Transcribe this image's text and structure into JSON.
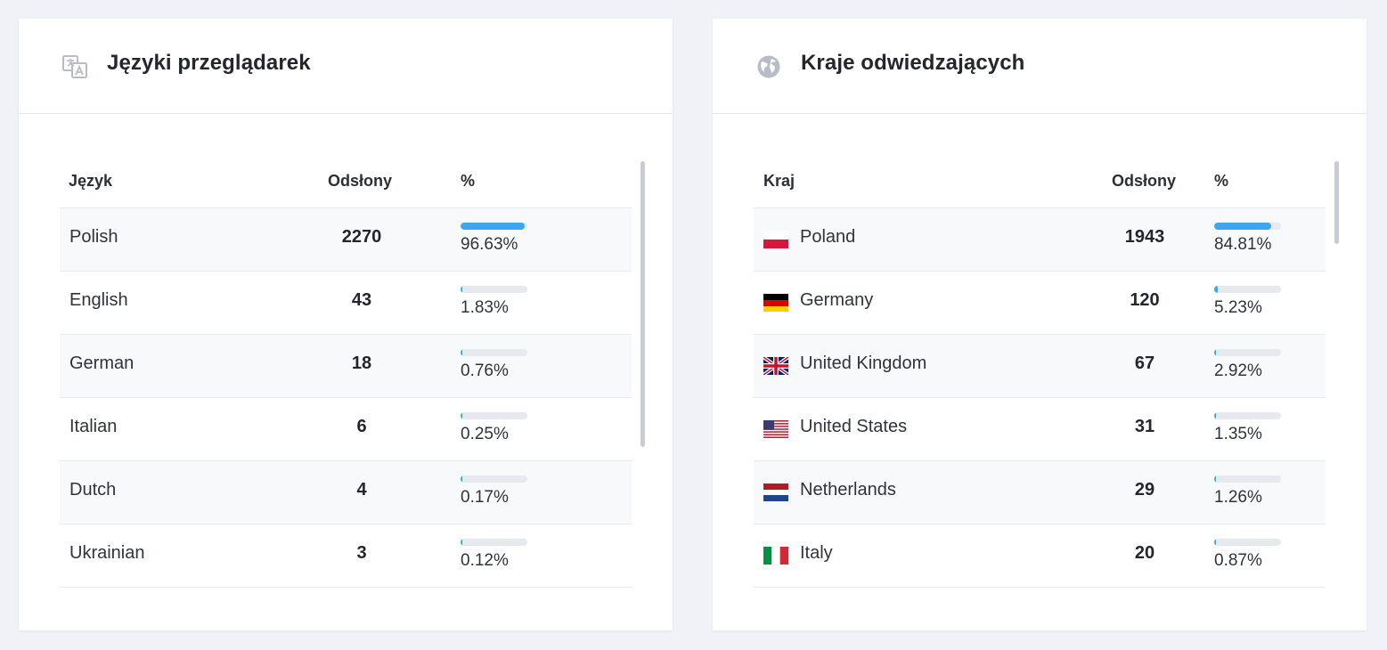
{
  "languages": {
    "title": "Języki przeglądarek",
    "icon": "translate-icon",
    "col_name": "Język",
    "col_views": "Odsłony",
    "col_pct": "%",
    "rows": [
      {
        "name": "Polish",
        "views": "2270",
        "pct": "96.63%",
        "fraction": 0.9663
      },
      {
        "name": "English",
        "views": "43",
        "pct": "1.83%",
        "fraction": 0.0183
      },
      {
        "name": "German",
        "views": "18",
        "pct": "0.76%",
        "fraction": 0.0076
      },
      {
        "name": "Italian",
        "views": "6",
        "pct": "0.25%",
        "fraction": 0.0025
      },
      {
        "name": "Dutch",
        "views": "4",
        "pct": "0.17%",
        "fraction": 0.0017
      },
      {
        "name": "Ukrainian",
        "views": "3",
        "pct": "0.12%",
        "fraction": 0.0012
      }
    ]
  },
  "countries": {
    "title": "Kraje odwiedzających",
    "icon": "globe-icon",
    "col_name": "Kraj",
    "col_views": "Odsłony",
    "col_pct": "%",
    "rows": [
      {
        "name": "Poland",
        "flag": "pl",
        "views": "1943",
        "pct": "84.81%",
        "fraction": 0.8481
      },
      {
        "name": "Germany",
        "flag": "de",
        "views": "120",
        "pct": "5.23%",
        "fraction": 0.0523
      },
      {
        "name": "United Kingdom",
        "flag": "gb",
        "views": "67",
        "pct": "2.92%",
        "fraction": 0.0292
      },
      {
        "name": "United States",
        "flag": "us",
        "views": "31",
        "pct": "1.35%",
        "fraction": 0.0135
      },
      {
        "name": "Netherlands",
        "flag": "nl",
        "views": "29",
        "pct": "1.26%",
        "fraction": 0.0126
      },
      {
        "name": "Italy",
        "flag": "it",
        "views": "20",
        "pct": "0.87%",
        "fraction": 0.0087
      }
    ]
  },
  "colors": {
    "accent": "#3ba7ee",
    "bar_track": "#e6e9ee",
    "background": "#f1f2f7"
  }
}
